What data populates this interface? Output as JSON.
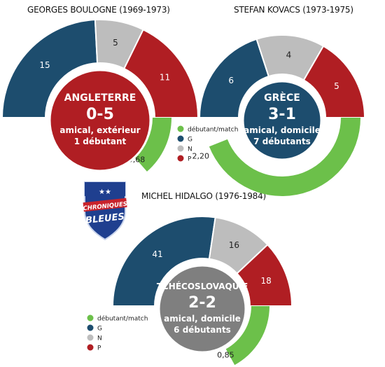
{
  "colors": {
    "G": "#1d4d6e",
    "N": "#bdbdbd",
    "P": "#b01e23",
    "debutant": "#6cc04a"
  },
  "legend": {
    "debutant": "débutant/match",
    "G": "G",
    "N": "N",
    "P": "P"
  },
  "logo": {
    "line1": "CHRONIQUES",
    "line2": "BLEUES",
    "stars": "★★"
  },
  "chart_data": [
    {
      "type": "donut",
      "title": "GEORGES BOULOGNE (1969-1973)",
      "categories": [
        "G",
        "N",
        "P"
      ],
      "values": [
        15,
        5,
        11
      ],
      "debutants_par_match": 0.68,
      "debutants_label": "0,68",
      "match": {
        "opponent": "ANGLETERRE",
        "score": "0-5",
        "type": "amical, extérieur",
        "debutants": "1 débutant",
        "color": "#b01e23"
      }
    },
    {
      "type": "donut",
      "title": "STEFAN KOVACS (1973-1975)",
      "categories": [
        "G",
        "N",
        "P"
      ],
      "values": [
        6,
        4,
        5
      ],
      "debutants_par_match": 2.2,
      "debutants_label": "2,20",
      "match": {
        "opponent": "GRÈCE",
        "score": "3-1",
        "type": "amical, domicile",
        "debutants": "7 débutants",
        "color": "#1d4d6e"
      }
    },
    {
      "type": "donut",
      "title": "MICHEL HIDALGO (1976-1984)",
      "categories": [
        "G",
        "N",
        "P"
      ],
      "values": [
        41,
        16,
        18
      ],
      "debutants_par_match": 0.85,
      "debutants_label": "0,85",
      "match": {
        "opponent": "TCHÉCOSLOVAQUIE",
        "score": "2-2",
        "type": "amical, domicile",
        "debutants": "6 débutants",
        "color": "#7f7f7f"
      }
    }
  ]
}
